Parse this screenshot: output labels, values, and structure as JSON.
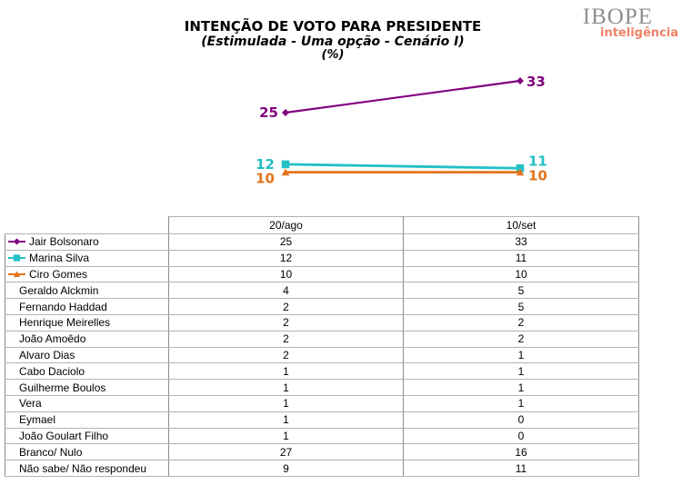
{
  "header": {
    "title_line1": "INTENÇÃO DE VOTO PARA PRESIDENTE",
    "title_line2": "(Estimulada - Uma opção - Cenário I)",
    "title_line3": "(%)",
    "logo": {
      "name": "IBOPE",
      "tagline": "inteligência",
      "name_color": "#8e8e8e",
      "tagline_color": "#ef8168"
    }
  },
  "chart_data": {
    "type": "line",
    "x": [
      "20/ago",
      "10/set"
    ],
    "series": [
      {
        "name": "Jair Bolsonaro",
        "values": [
          25,
          33
        ],
        "color": "#80017f",
        "marker": "diamond"
      },
      {
        "name": "Marina Silva",
        "values": [
          12,
          11
        ],
        "color": "#22bfc5",
        "marker": "square"
      },
      {
        "name": "Ciro Gomes",
        "values": [
          10,
          10
        ],
        "color": "#e2751d",
        "marker": "triangle"
      }
    ],
    "title": "INTENÇÃO DE VOTO PARA PRESIDENTE (Estimulada - Uma opção - Cenário I) (%)",
    "data_labels": true,
    "grid": false,
    "legend_position": "table-first-column",
    "ylim": [
      0,
      40
    ]
  },
  "table": {
    "columns": [
      "",
      "20/ago",
      "10/set"
    ],
    "rows": [
      {
        "name": "Jair Bolsonaro",
        "values": [
          "25",
          "33"
        ],
        "marker": "diamond",
        "color": "#80017f"
      },
      {
        "name": "Marina Silva",
        "values": [
          "12",
          "11"
        ],
        "marker": "square",
        "color": "#22bfc5"
      },
      {
        "name": "Ciro Gomes",
        "values": [
          "10",
          "10"
        ],
        "marker": "triangle",
        "color": "#e2751d"
      },
      {
        "name": "Geraldo Alckmin",
        "values": [
          "4",
          "5"
        ]
      },
      {
        "name": "Fernando Haddad",
        "values": [
          "2",
          "5"
        ]
      },
      {
        "name": "Henrique Meirelles",
        "values": [
          "2",
          "2"
        ]
      },
      {
        "name": "João Amoêdo",
        "values": [
          "2",
          "2"
        ]
      },
      {
        "name": "Alvaro Dias",
        "values": [
          "2",
          "1"
        ]
      },
      {
        "name": "Cabo Daciolo",
        "values": [
          "1",
          "1"
        ]
      },
      {
        "name": "Guilherme Boulos",
        "values": [
          "1",
          "1"
        ]
      },
      {
        "name": "Vera",
        "values": [
          "1",
          "1"
        ]
      },
      {
        "name": "Eymael",
        "values": [
          "1",
          "0"
        ]
      },
      {
        "name": "João Goulart Filho",
        "values": [
          "1",
          "0"
        ]
      },
      {
        "name": "Branco/ Nulo",
        "values": [
          "27",
          "16"
        ]
      },
      {
        "name": "Não sabe/ Não respondeu",
        "values": [
          "9",
          "11"
        ]
      }
    ]
  }
}
